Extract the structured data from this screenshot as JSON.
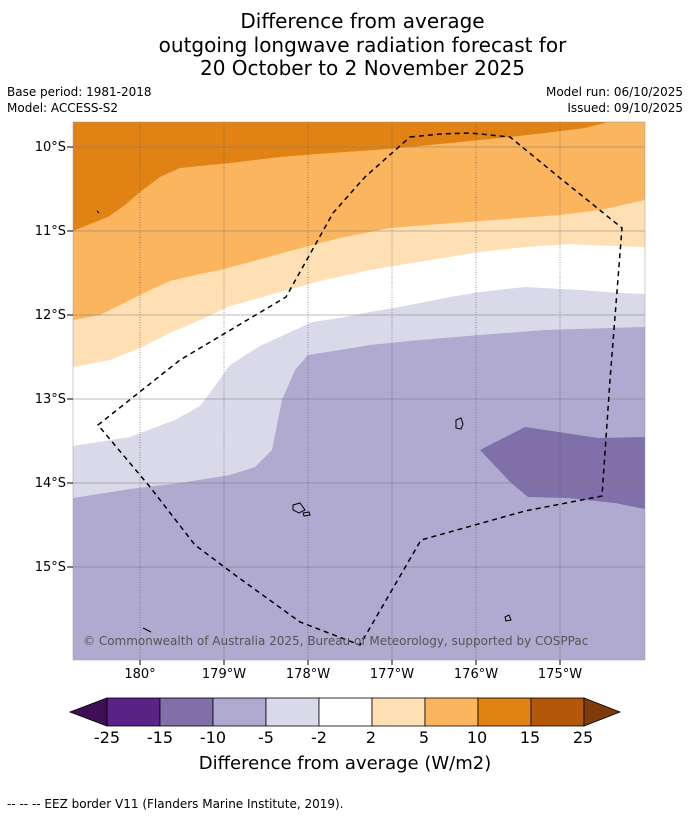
{
  "header": {
    "title_line1": "Difference from average",
    "title_line2": "outgoing longwave radiation forecast for",
    "title_line3": "20 October to 2 November 2025",
    "base_period": "Base period: 1981-2018",
    "model": "Model: ACCESS-S2",
    "model_run": "Model run: 06/10/2025",
    "issued": "Issued: 09/10/2025"
  },
  "map": {
    "lat_labels": [
      "10°S",
      "11°S",
      "12°S",
      "13°S",
      "14°S",
      "15°S"
    ],
    "lon_labels": [
      "180°",
      "179°W",
      "178°W",
      "177°W",
      "176°W",
      "175°W"
    ],
    "copyright": "© Commonwealth of Australia 2025, Bureau of Meteorology, supported by COSPPac"
  },
  "legend": {
    "ticks": [
      "-25",
      "-15",
      "-10",
      "-5",
      "-2",
      "2",
      "5",
      "10",
      "15",
      "25"
    ],
    "label": "Difference from average (W/m2)",
    "colors": [
      "#3f0f56",
      "#5a2287",
      "#7f70aa",
      "#b0a9d0",
      "#d9d9ea",
      "#ffffff",
      "#ffe0b5",
      "#fbb55f",
      "#e08214",
      "#b3580a",
      "#7f3b08"
    ]
  },
  "footer": {
    "eez_note": "--  --  -- EEZ border V11 (Flanders Marine Institute, 2019)."
  }
}
